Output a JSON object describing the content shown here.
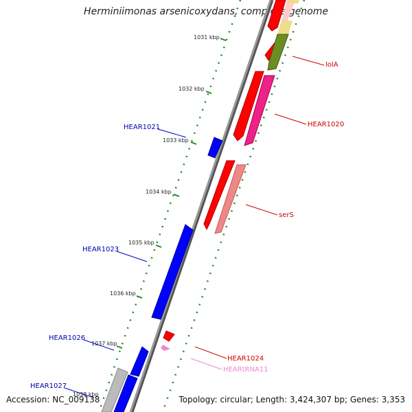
{
  "title": "Herminiimonas arsenicoxydans, complete genome",
  "footer": {
    "accession": "Accession: NC_009138",
    "topology": "Topology: circular; Length: 3,424,307 bp; Genes: 3,353"
  },
  "ticks": [
    {
      "label": "1031 kbp"
    },
    {
      "label": "1032 kbp"
    },
    {
      "label": "1033 kbp"
    },
    {
      "label": "1034 kbp"
    },
    {
      "label": "1035 kbp"
    },
    {
      "label": "1036 kbp"
    },
    {
      "label": "1037 kbp"
    },
    {
      "label": "1038 kbp"
    }
  ],
  "genes": [
    {
      "name": "HEAR1021",
      "strand": "minus",
      "color": "#0000cc"
    },
    {
      "name": "HEAR1023",
      "strand": "minus",
      "color": "#0000cc"
    },
    {
      "name": "HEAR1026",
      "strand": "minus",
      "color": "#0000cc"
    },
    {
      "name": "HEAR1027",
      "strand": "minus",
      "color": "#0000cc"
    },
    {
      "name": "lolA",
      "strand": "plus",
      "color": "#cc0000"
    },
    {
      "name": "HEAR1020",
      "strand": "plus",
      "color": "#cc0000"
    },
    {
      "name": "serS",
      "strand": "plus",
      "color": "#cc0000"
    },
    {
      "name": "HEAR1024",
      "strand": "plus",
      "color": "#cc0000"
    },
    {
      "name": "HEARtRNA11",
      "strand": "plus",
      "color": "#ee88cc"
    }
  ]
}
